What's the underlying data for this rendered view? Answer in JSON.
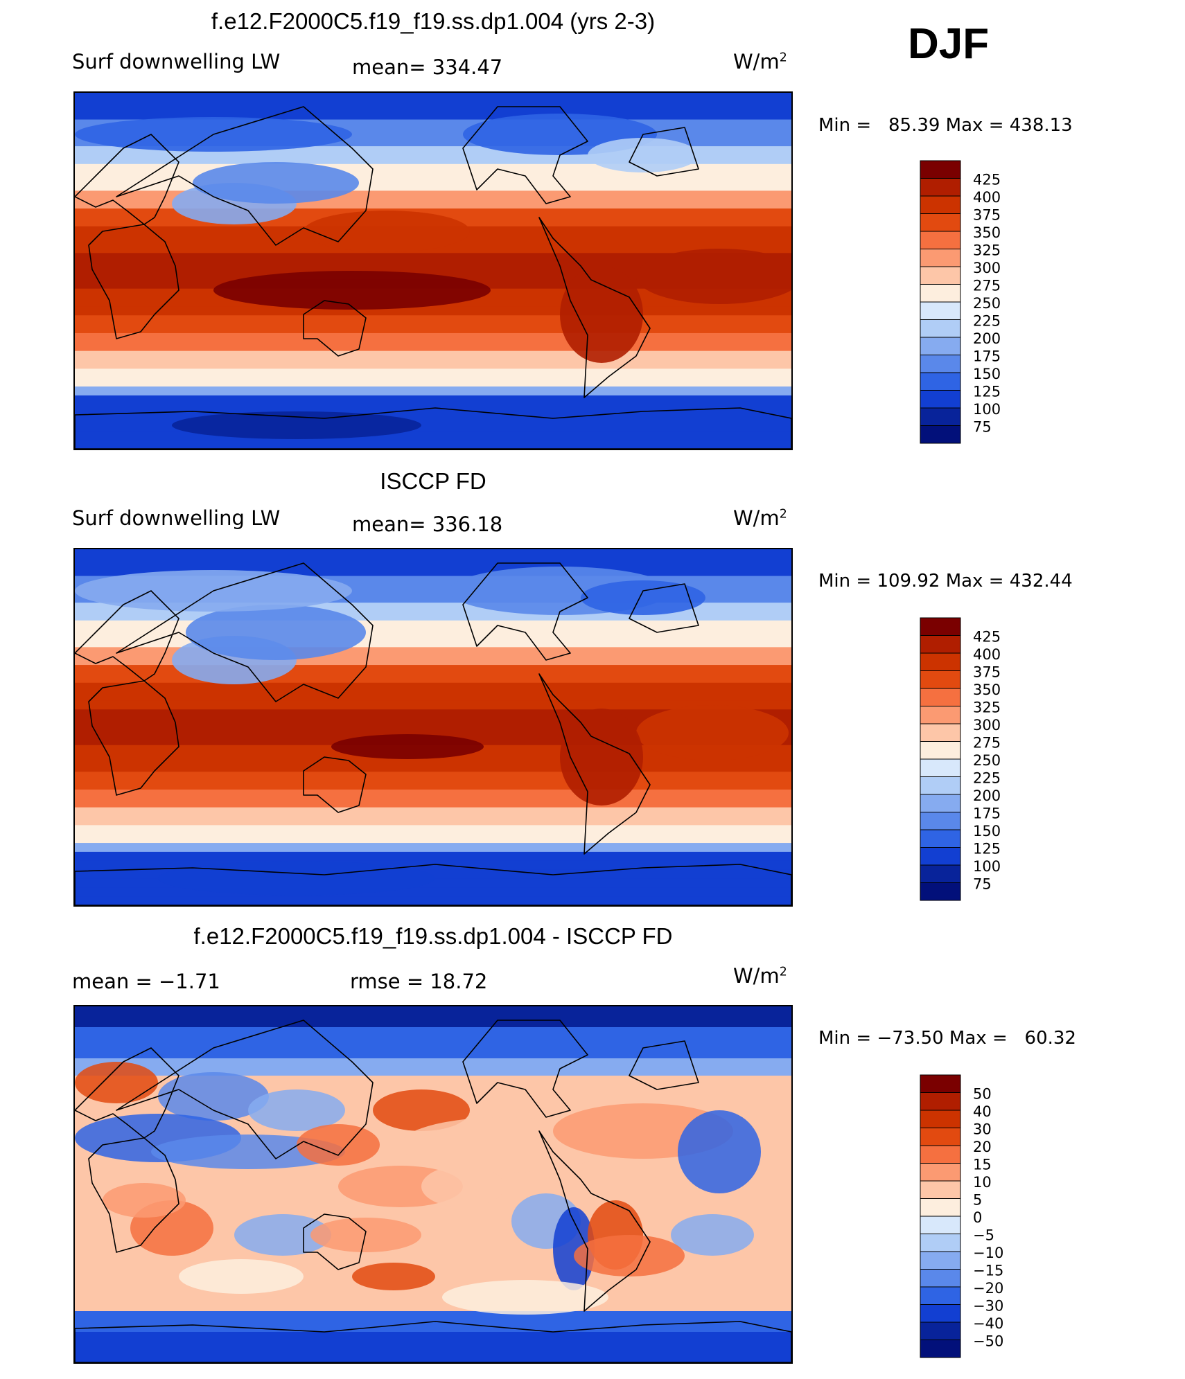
{
  "season": "DJF",
  "units_base": "W/m",
  "units_exp": "2",
  "panels": [
    {
      "title": "f.e12.F2000C5.f19_f19.ss.dp1.004 (yrs 2-3)",
      "left_label": "Surf downwelling LW",
      "center_label": "mean= 334.47",
      "minmax": "Min =   85.39 Max = 438.13",
      "colorbar_labels": [
        "425",
        "400",
        "375",
        "350",
        "325",
        "300",
        "275",
        "250",
        "225",
        "200",
        "175",
        "150",
        "125",
        "100",
        "75"
      ],
      "map_type": "model"
    },
    {
      "title": "ISCCP FD",
      "left_label": "Surf downwelling LW",
      "center_label": "mean= 336.18",
      "minmax": "Min = 109.92 Max = 432.44",
      "colorbar_labels": [
        "425",
        "400",
        "375",
        "350",
        "325",
        "300",
        "275",
        "250",
        "225",
        "200",
        "175",
        "150",
        "125",
        "100",
        "75"
      ],
      "map_type": "obs"
    },
    {
      "title": "f.e12.F2000C5.f19_f19.ss.dp1.004 - ISCCP FD",
      "left_label": "mean =   −1.71",
      "center_label": "rmse =   18.72",
      "minmax": "Min = −73.50 Max =   60.32",
      "colorbar_labels": [
        "50",
        "40",
        "30",
        "20",
        "15",
        "10",
        "5",
        "0",
        "−5",
        "−10",
        "−15",
        "−20",
        "−30",
        "−40",
        "−50"
      ],
      "map_type": "diff"
    }
  ],
  "colors": {
    "palette": [
      "#7a0000",
      "#b01e00",
      "#cc3300",
      "#e24a10",
      "#f57040",
      "#fb9a72",
      "#fdc6a8",
      "#fdeede",
      "#d8e8fb",
      "#b0cdf6",
      "#86abf0",
      "#5a88ea",
      "#2f64e4",
      "#123fd2",
      "#08239a",
      "#02107a"
    ]
  }
}
